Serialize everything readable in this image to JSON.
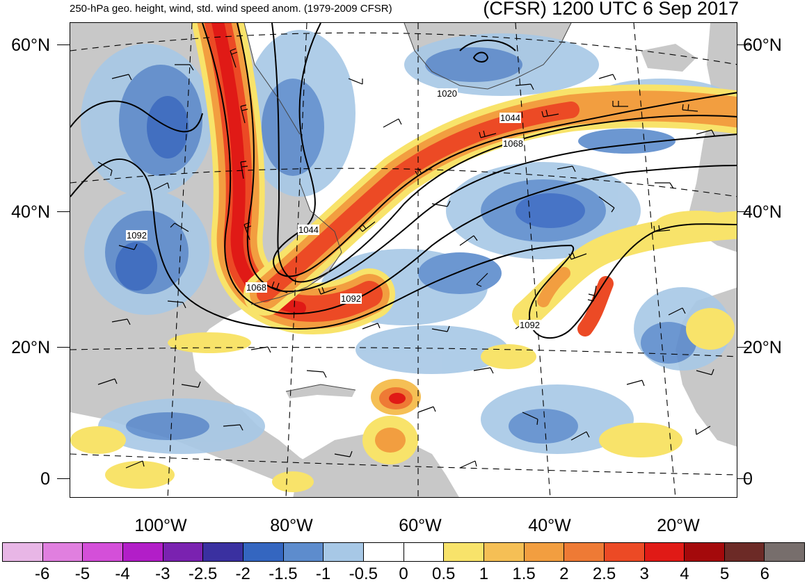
{
  "header": {
    "title_left": "250-hPa geo. height, wind, std. wind speed anom. (1979-2009 CFSR)",
    "title_right": "(CFSR) 1200 UTC 6 Sep 2017"
  },
  "axes": {
    "lat_labels": [
      "60°N",
      "40°N",
      "20°N",
      "0"
    ],
    "lon_labels": [
      "100°W",
      "80°W",
      "60°W",
      "40°W",
      "20°W"
    ]
  },
  "contour_labels": [
    "1020",
    "1044",
    "1068",
    "1044",
    "1068",
    "1092",
    "1092",
    "1092"
  ],
  "colorbar": {
    "labels": [
      "-6",
      "-5",
      "-4",
      "-3",
      "-2.5",
      "-2",
      "-1.5",
      "-1",
      "-0.5",
      "0",
      "0.5",
      "1",
      "1.5",
      "2",
      "2.5",
      "3",
      "4",
      "5",
      "6"
    ],
    "colors": [
      "#e8b6e6",
      "#e07fdf",
      "#d44fd9",
      "#b21ec8",
      "#7a22b0",
      "#3a30a0",
      "#3466c0",
      "#5d8ccd",
      "#a7c8e6",
      "#ffffff",
      "#ffffff",
      "#f8e36a",
      "#f5bf55",
      "#f29e40",
      "#ee7a35",
      "#ec4a25",
      "#e01a16",
      "#a4090b",
      "#6c2a26",
      "#776e6c"
    ]
  },
  "palette": {
    "land": "#c8c8c8",
    "ocean": "#ffffff"
  }
}
